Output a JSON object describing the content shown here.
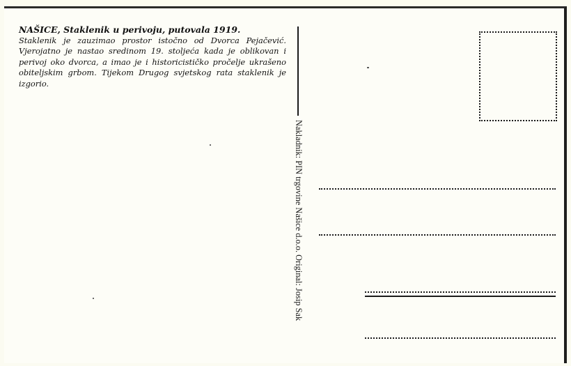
{
  "caption": {
    "title": "NAŠICE, Staklenik u perivoju, putovala 1919.",
    "body": "Staklenik je zauzimao prostor istočno od Dvorca Pejačević. Vjerojatno je nastao sredinom 19. stoljeća kada je oblikovan i perivoj oko dvorca, a imao je i historicističko pročelje ukrašeno obiteljskim grbom. Tijekom Drugog svjetskog rata staklenik je izgorio."
  },
  "publisher_line": "Nakladnik: PIN trgovine Našice d.o.o. Original: Josip Sak",
  "colors": {
    "paper": "#fdfdf7",
    "ink": "#111111",
    "border": "#1e1e1e"
  }
}
